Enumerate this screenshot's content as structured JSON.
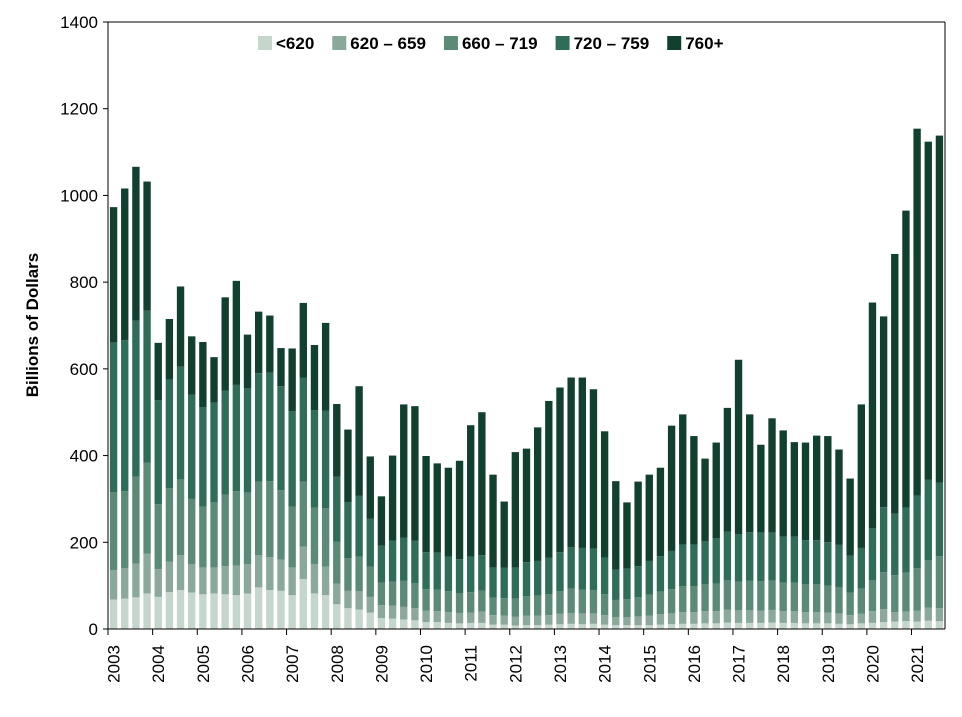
{
  "chart_data": {
    "type": "bar",
    "stacked": true,
    "title": "",
    "xlabel": "",
    "ylabel": "Billions of Dollars",
    "ylim": [
      0,
      1400
    ],
    "yticks": [
      0,
      200,
      400,
      600,
      800,
      1000,
      1200,
      1400
    ],
    "year_ticks": [
      "2003",
      "2004",
      "2005",
      "2006",
      "2007",
      "2008",
      "2009",
      "2010",
      "2011",
      "2012",
      "2013",
      "2014",
      "2015",
      "2016",
      "2017",
      "2018",
      "2019",
      "2020",
      "2021"
    ],
    "legend_position": "top",
    "categories": [
      "2003Q1",
      "2003Q2",
      "2003Q3",
      "2003Q4",
      "2004Q1",
      "2004Q2",
      "2004Q3",
      "2004Q4",
      "2005Q1",
      "2005Q2",
      "2005Q3",
      "2005Q4",
      "2006Q1",
      "2006Q2",
      "2006Q3",
      "2006Q4",
      "2007Q1",
      "2007Q2",
      "2007Q3",
      "2007Q4",
      "2008Q1",
      "2008Q2",
      "2008Q3",
      "2008Q4",
      "2009Q1",
      "2009Q2",
      "2009Q3",
      "2009Q4",
      "2010Q1",
      "2010Q2",
      "2010Q3",
      "2010Q4",
      "2011Q1",
      "2011Q2",
      "2011Q3",
      "2011Q4",
      "2012Q1",
      "2012Q2",
      "2012Q3",
      "2012Q4",
      "2013Q1",
      "2013Q2",
      "2013Q3",
      "2013Q4",
      "2014Q1",
      "2014Q2",
      "2014Q3",
      "2014Q4",
      "2015Q1",
      "2015Q2",
      "2015Q3",
      "2015Q4",
      "2016Q1",
      "2016Q2",
      "2016Q3",
      "2016Q4",
      "2017Q1",
      "2017Q2",
      "2017Q3",
      "2017Q4",
      "2018Q1",
      "2018Q2",
      "2018Q3",
      "2018Q4",
      "2019Q1",
      "2019Q2",
      "2019Q3",
      "2019Q4",
      "2020Q1",
      "2020Q2",
      "2020Q3",
      "2020Q4",
      "2021Q1",
      "2021Q2",
      "2021Q3"
    ],
    "series": [
      {
        "name": "<620",
        "color": "#c5d6cd",
        "values": [
          68,
          70,
          73,
          82,
          74,
          85,
          90,
          84,
          80,
          82,
          80,
          78,
          82,
          96,
          90,
          88,
          78,
          115,
          82,
          78,
          57,
          48,
          45,
          38,
          25,
          24,
          22,
          20,
          16,
          16,
          14,
          13,
          14,
          14,
          10,
          10,
          8,
          9,
          9,
          10,
          11,
          12,
          11,
          12,
          10,
          9,
          9,
          9,
          9,
          10,
          11,
          12,
          12,
          13,
          13,
          15,
          14,
          14,
          14,
          15,
          14,
          14,
          13,
          13,
          13,
          12,
          11,
          13,
          14,
          16,
          17,
          18,
          17,
          19,
          18
        ]
      },
      {
        "name": "620 – 659",
        "color": "#8aa99b",
        "values": [
          68,
          70,
          78,
          92,
          64,
          70,
          80,
          66,
          62,
          60,
          65,
          68,
          68,
          74,
          76,
          72,
          64,
          75,
          68,
          66,
          48,
          40,
          42,
          36,
          30,
          30,
          29,
          28,
          26,
          25,
          25,
          24,
          24,
          26,
          22,
          21,
          20,
          22,
          22,
          22,
          24,
          25,
          25,
          24,
          22,
          18,
          18,
          20,
          22,
          24,
          25,
          27,
          27,
          28,
          28,
          30,
          29,
          29,
          28,
          29,
          27,
          27,
          26,
          26,
          25,
          24,
          21,
          22,
          27,
          30,
          22,
          22,
          25,
          30,
          30
        ]
      },
      {
        "name": "660 – 719",
        "color": "#5b8a77",
        "values": [
          180,
          178,
          200,
          210,
          150,
          170,
          175,
          150,
          140,
          150,
          165,
          172,
          165,
          170,
          175,
          160,
          140,
          150,
          130,
          135,
          96,
          75,
          80,
          70,
          52,
          55,
          60,
          58,
          50,
          50,
          48,
          46,
          47,
          48,
          40,
          40,
          42,
          45,
          46,
          48,
          52,
          56,
          55,
          54,
          48,
          40,
          42,
          44,
          48,
          52,
          56,
          60,
          60,
          62,
          64,
          68,
          66,
          68,
          68,
          68,
          66,
          66,
          64,
          64,
          62,
          60,
          52,
          58,
          72,
          85,
          85,
          90,
          98,
          110,
          120
        ]
      },
      {
        "name": "720 – 759",
        "color": "#2f6d58",
        "values": [
          345,
          348,
          360,
          350,
          240,
          250,
          260,
          240,
          230,
          230,
          240,
          245,
          240,
          250,
          250,
          240,
          220,
          240,
          225,
          225,
          150,
          130,
          140,
          110,
          85,
          95,
          100,
          98,
          85,
          85,
          80,
          78,
          82,
          82,
          70,
          70,
          72,
          78,
          80,
          84,
          90,
          96,
          96,
          95,
          85,
          70,
          70,
          72,
          78,
          82,
          88,
          96,
          96,
          100,
          104,
          112,
          110,
          112,
          112,
          110,
          106,
          106,
          102,
          102,
          100,
          98,
          85,
          94,
          120,
          150,
          142,
          150,
          168,
          185,
          170
        ]
      },
      {
        "name": "760+",
        "color": "#12402f",
        "values": [
          312,
          350,
          355,
          298,
          132,
          140,
          185,
          135,
          150,
          105,
          215,
          240,
          124,
          142,
          132,
          88,
          145,
          172,
          150,
          202,
          168,
          167,
          253,
          144,
          114,
          196,
          307,
          310,
          222,
          206,
          205,
          227,
          303,
          330,
          214,
          153,
          266,
          262,
          308,
          362,
          380,
          391,
          393,
          368,
          291,
          204,
          153,
          195,
          199,
          204,
          289,
          300,
          250,
          190,
          221,
          285,
          402,
          272,
          203,
          264,
          245,
          218,
          225,
          241,
          245,
          220,
          178,
          331,
          520,
          440,
          599,
          685,
          846,
          780,
          800
        ]
      }
    ]
  }
}
